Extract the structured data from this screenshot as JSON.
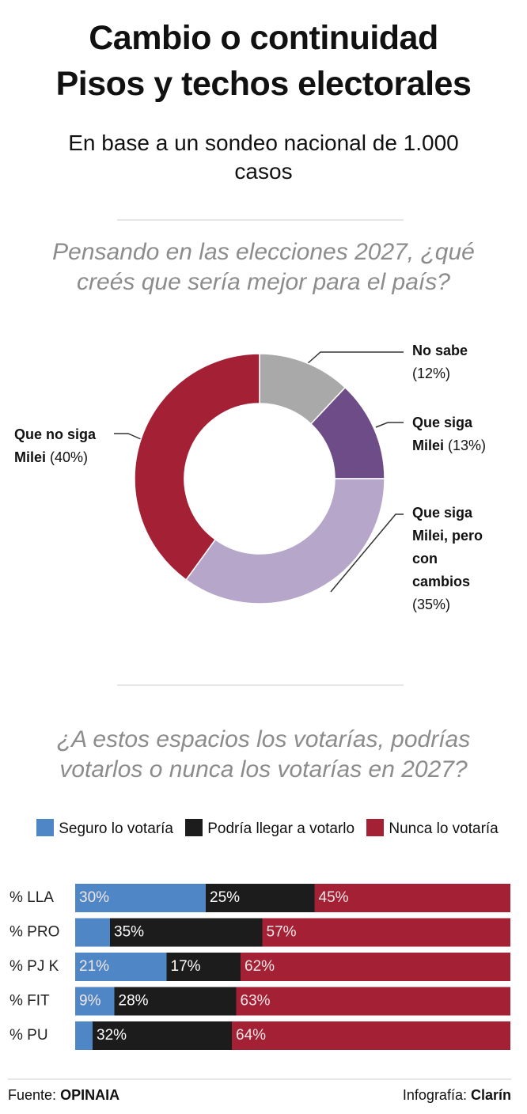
{
  "header": {
    "title_lines": [
      "Cambio o continuidad",
      "Pisos y techos electorales"
    ],
    "subtitle": "En base a un sondeo nacional de 1.000 casos"
  },
  "chart_data": [
    {
      "type": "donut",
      "title": "Pensando en las elecciones 2027, ¿qué creés que sería mejor para el país?",
      "categories": [
        "No sabe",
        "Que siga Milei",
        "Que siga Milei, pero con cambios",
        "Que no siga Milei"
      ],
      "values": [
        12,
        13,
        35,
        40
      ],
      "value_labels": [
        "(12%)",
        "(13%)",
        "(35%)",
        "(40%)"
      ],
      "colors": [
        "#a9a9a9",
        "#6e4c87",
        "#b6a6c9",
        "#a32035"
      ]
    },
    {
      "type": "stacked-bar-horizontal",
      "title": "¿A estos espacios los votarías, podrías votarlos o nunca los votarías en 2027?",
      "categories": [
        "% LLA",
        "% PRO",
        "% PJ K",
        "% FIT",
        "% PU"
      ],
      "xlim": [
        0,
        100
      ],
      "series": [
        {
          "name": "Seguro lo votaría",
          "color": "#4f86c6",
          "values": [
            30,
            8,
            21,
            9,
            4
          ],
          "value_labels": [
            "30%",
            null,
            "21%",
            "9%",
            null
          ]
        },
        {
          "name": "Podría llegar a votarlo",
          "color": "#1c1c1c",
          "values": [
            25,
            35,
            17,
            28,
            32
          ],
          "value_labels": [
            "25%",
            "35%",
            "17%",
            "28%",
            "32%"
          ]
        },
        {
          "name": "Nunca lo votaría",
          "color": "#a32035",
          "values": [
            45,
            57,
            62,
            63,
            64
          ],
          "value_labels": [
            "45%",
            "57%",
            "62%",
            "63%",
            "64%"
          ]
        }
      ]
    }
  ],
  "footer": {
    "source_label": "Fuente:",
    "source": "OPINAIA",
    "credit_label": "Infografía:",
    "credit": "Clarín"
  }
}
